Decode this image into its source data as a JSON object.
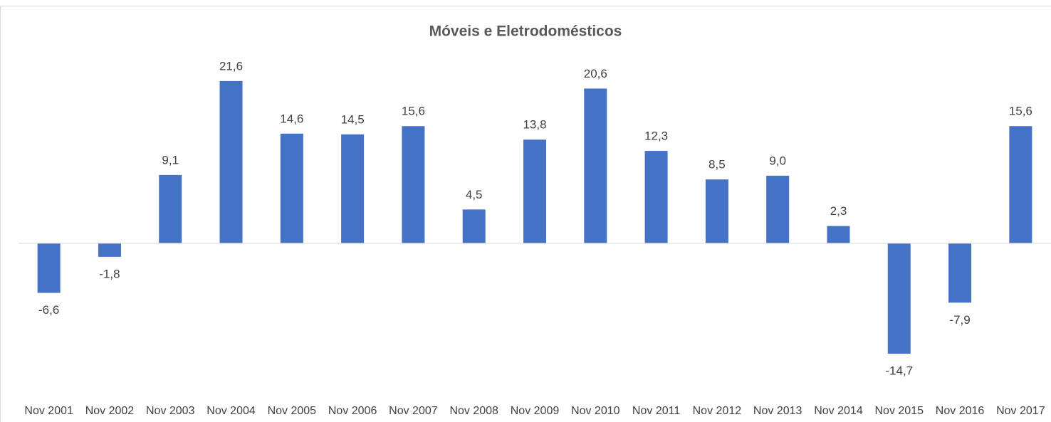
{
  "chart_data": {
    "type": "bar",
    "title": "Móveis e Eletrodomésticos",
    "categories": [
      "Nov 2001",
      "Nov 2002",
      "Nov 2003",
      "Nov 2004",
      "Nov 2005",
      "Nov 2006",
      "Nov 2007",
      "Nov 2008",
      "Nov 2009",
      "Nov 2010",
      "Nov 2011",
      "Nov 2012",
      "Nov 2013",
      "Nov 2014",
      "Nov 2015",
      "Nov 2016",
      "Nov 2017"
    ],
    "values": [
      -6.6,
      -1.8,
      9.1,
      21.6,
      14.6,
      14.5,
      15.6,
      4.5,
      13.8,
      20.6,
      12.3,
      8.5,
      9.0,
      2.3,
      -14.7,
      -7.9,
      15.6
    ],
    "value_labels": [
      "-6,6",
      "-1,8",
      "9,1",
      "21,6",
      "14,6",
      "14,5",
      "15,6",
      "4,5",
      "13,8",
      "20,6",
      "12,3",
      "8,5",
      "9,0",
      "2,3",
      "-14,7",
      "-7,9",
      "15,6"
    ],
    "color": "#4472c4",
    "ylim": [
      -20,
      25
    ]
  }
}
